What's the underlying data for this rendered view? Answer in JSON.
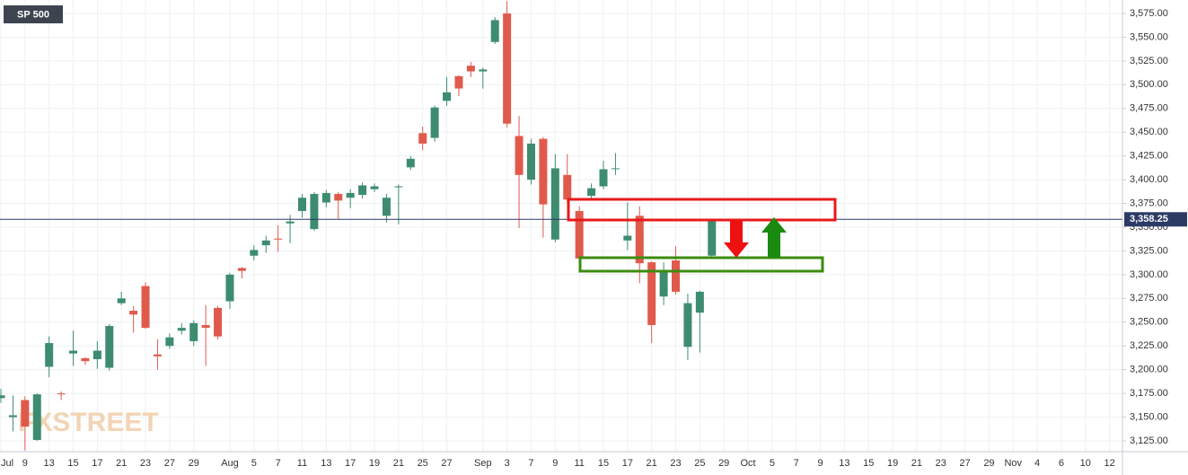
{
  "chart_data": {
    "type": "candlestick",
    "title": "SP 500",
    "watermark": "FXSTREET",
    "categories": [
      "Jul",
      null,
      "9",
      null,
      "13",
      null,
      "15",
      null,
      "17",
      null,
      "21",
      null,
      "23",
      null,
      "27",
      null,
      "29",
      null,
      null,
      "Aug",
      null,
      "5",
      null,
      "7",
      null,
      "11",
      null,
      "13",
      null,
      "17",
      null,
      "19",
      null,
      "21",
      null,
      "25",
      null,
      "27",
      null,
      null,
      "Sep",
      null,
      "3",
      null,
      "7",
      null,
      "9",
      null,
      "11",
      null,
      "15",
      null,
      "17",
      null,
      "21",
      null,
      "23",
      null,
      "25",
      null,
      "29",
      null,
      "Oct",
      null,
      "5",
      null,
      "7",
      null,
      "9",
      null,
      "13",
      null,
      "15",
      null,
      "19",
      null,
      "21",
      null,
      "23",
      null,
      "27",
      null,
      "29",
      null,
      "Nov",
      null,
      "4",
      null,
      "6",
      null,
      "10",
      null,
      "12",
      null
    ],
    "open": [
      3170,
      3150,
      3168,
      3126,
      3203,
      3175,
      3217,
      3212,
      3211,
      3202,
      3270,
      3262,
      3288,
      3216,
      3225,
      3241,
      3230,
      3247,
      3265,
      3272,
      3307,
      3320,
      3331,
      3338,
      3354,
      3367,
      3348,
      3376,
      3385,
      3381,
      3384,
      3390,
      3362,
      3392,
      3413,
      3449,
      3444,
      3483,
      3509,
      3520,
      3514,
      3545,
      3575,
      3446,
      3400,
      3443,
      3337,
      3405,
      3367,
      3383,
      3393,
      3412,
      3336,
      3362,
      3313,
      3277,
      3315,
      3224,
      3260,
      3320,
      null,
      null,
      null,
      null,
      null,
      null,
      null,
      null,
      null,
      null,
      null,
      null,
      null,
      null,
      null,
      null,
      null,
      null,
      null,
      null,
      null,
      null,
      null,
      null,
      null,
      null,
      null,
      null,
      null,
      null,
      null,
      null,
      null,
      null
    ],
    "high": [
      3180,
      3173,
      3172,
      3175,
      3235,
      3177,
      3241,
      3213,
      3230,
      3248,
      3282,
      3267,
      3292,
      3232,
      3238,
      3249,
      3252,
      3268,
      3267,
      3302,
      3308,
      3331,
      3341,
      3352,
      3363,
      3385,
      3387,
      3389,
      3387,
      3390,
      3397,
      3396,
      3385,
      3395,
      3425,
      3456,
      3478,
      3508,
      3510,
      3524,
      3518,
      3571,
      3588,
      3467,
      3443,
      3445,
      3427,
      3427,
      3372,
      3396,
      3420,
      3428,
      3376,
      3372,
      3314,
      3313,
      3330,
      3280,
      3283,
      3359,
      null,
      null,
      null,
      null,
      null,
      null,
      null,
      null,
      null,
      null,
      null,
      null,
      null,
      null,
      null,
      null,
      null,
      null,
      null,
      null,
      null,
      null,
      null,
      null,
      null,
      null,
      null,
      null,
      null,
      null,
      null,
      null,
      null,
      null
    ],
    "low": [
      3165,
      3135,
      3115,
      3125,
      3192,
      3168,
      3204,
      3205,
      3201,
      3199,
      3268,
      3239,
      3243,
      3200,
      3222,
      3237,
      3225,
      3204,
      3232,
      3264,
      3296,
      3315,
      3323,
      3324,
      3333,
      3360,
      3346,
      3371,
      3358,
      3370,
      3380,
      3387,
      3355,
      3353,
      3410,
      3431,
      3440,
      3478,
      3488,
      3508,
      3496,
      3543,
      3455,
      3349,
      3395,
      3339,
      3334,
      3376,
      3313,
      3380,
      3390,
      3405,
      3326,
      3291,
      3228,
      3268,
      3279,
      3210,
      3218,
      3319,
      null,
      null,
      null,
      null,
      null,
      null,
      null,
      null,
      null,
      null,
      null,
      null,
      null,
      null,
      null,
      null,
      null,
      null,
      null,
      null,
      null,
      null,
      null,
      null,
      null,
      null,
      null,
      null,
      null,
      null,
      null,
      null,
      null,
      null
    ],
    "close": [
      3173,
      3152,
      3140,
      3174,
      3228,
      3174,
      3220,
      3209,
      3220,
      3246,
      3275,
      3258,
      3244,
      3214,
      3234,
      3244,
      3249,
      3244,
      3235,
      3300,
      3304,
      3326,
      3336,
      3337,
      3356,
      3381,
      3385,
      3386,
      3378,
      3386,
      3394,
      3393,
      3381,
      3393,
      3422,
      3438,
      3476,
      3492,
      3496,
      3514,
      3516,
      3568,
      3459,
      3405,
      3438,
      3374,
      3412,
      3379,
      3317,
      3391,
      3411,
      3412,
      3341,
      3312,
      3247,
      3303,
      3282,
      3270,
      3282,
      3358.25,
      null,
      null,
      null,
      null,
      null,
      null,
      null,
      null,
      null,
      null,
      null,
      null,
      null,
      null,
      null,
      null,
      null,
      null,
      null,
      null,
      null,
      null,
      null,
      null,
      null,
      null,
      null,
      null,
      null,
      null,
      null,
      null,
      null,
      null
    ],
    "up_color": "#3e8c70",
    "down_color": "#e05a4c",
    "last_price": {
      "value": 3358.25,
      "label": "3,358.25"
    },
    "ylim": [
      3113.67,
      3589.18
    ],
    "yticks": [
      {
        "value": 3125,
        "label": "3,125.00"
      },
      {
        "value": 3150,
        "label": "3,150.00"
      },
      {
        "value": 3175,
        "label": "3,175.00"
      },
      {
        "value": 3200,
        "label": "3,200.00"
      },
      {
        "value": 3225,
        "label": "3,225.00"
      },
      {
        "value": 3250,
        "label": "3,250.00"
      },
      {
        "value": 3275,
        "label": "3,275.00"
      },
      {
        "value": 3300,
        "label": "3,300.00"
      },
      {
        "value": 3325,
        "label": "3,325.00"
      },
      {
        "value": 3350,
        "label": "3,350.00"
      },
      {
        "value": 3375,
        "label": "3,375.00"
      },
      {
        "value": 3400,
        "label": "3,400.00"
      },
      {
        "value": 3425,
        "label": "3,425.00"
      },
      {
        "value": 3450,
        "label": "3,450.00"
      },
      {
        "value": 3475,
        "label": "3,475.00"
      },
      {
        "value": 3500,
        "label": "3,500.00"
      },
      {
        "value": 3525,
        "label": "3,525.00"
      },
      {
        "value": 3550,
        "label": "3,550.00"
      },
      {
        "value": 3575,
        "label": "3,575.00"
      }
    ],
    "grid": true
  }
}
